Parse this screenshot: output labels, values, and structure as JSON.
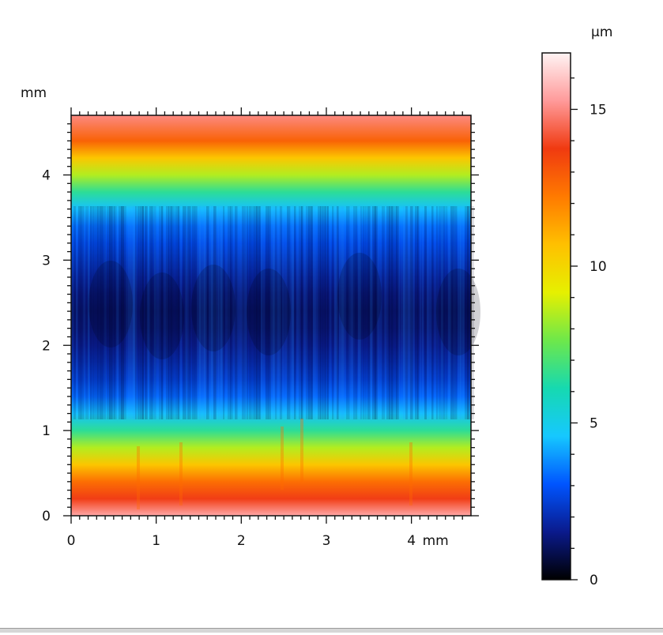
{
  "chart_data": {
    "type": "heatmap",
    "title": "",
    "x_axis": {
      "range": [
        0,
        4.7
      ],
      "ticks": [
        "0",
        "1",
        "2",
        "3",
        "4"
      ],
      "unit": "mm"
    },
    "y_axis": {
      "range": [
        0,
        4.7
      ],
      "ticks": [
        "0",
        "1",
        "2",
        "3",
        "4"
      ],
      "unit": "mm"
    },
    "colorbar": {
      "unit": "µm",
      "range": [
        0,
        16.8
      ],
      "ticks": [
        "0",
        "5",
        "10",
        "15"
      ],
      "colormap": [
        "#000000",
        "#0a1a8c",
        "#0055ff",
        "#16c8ff",
        "#16d9b0",
        "#6ee84a",
        "#e6f000",
        "#ffc000",
        "#ff7a00",
        "#f03a10",
        "#ff9a9a",
        "#fff4f4"
      ]
    },
    "height_profile_y_mm": [
      0.0,
      0.2,
      0.4,
      0.6,
      0.8,
      1.0,
      1.2,
      1.4,
      1.6,
      1.8,
      2.0,
      2.2,
      2.4,
      2.6,
      2.8,
      3.0,
      3.2,
      3.4,
      3.6,
      3.8,
      4.0,
      4.2,
      4.4,
      4.7
    ],
    "height_profile_um": [
      15.5,
      13.8,
      12.5,
      10.5,
      8.5,
      6.5,
      4.5,
      3.3,
      2.5,
      2.0,
      1.6,
      1.3,
      1.2,
      1.4,
      1.8,
      2.3,
      2.8,
      3.4,
      4.5,
      6.5,
      8.5,
      10.5,
      12.8,
      15.0
    ],
    "grid": false,
    "legend": "colorbar-right"
  }
}
